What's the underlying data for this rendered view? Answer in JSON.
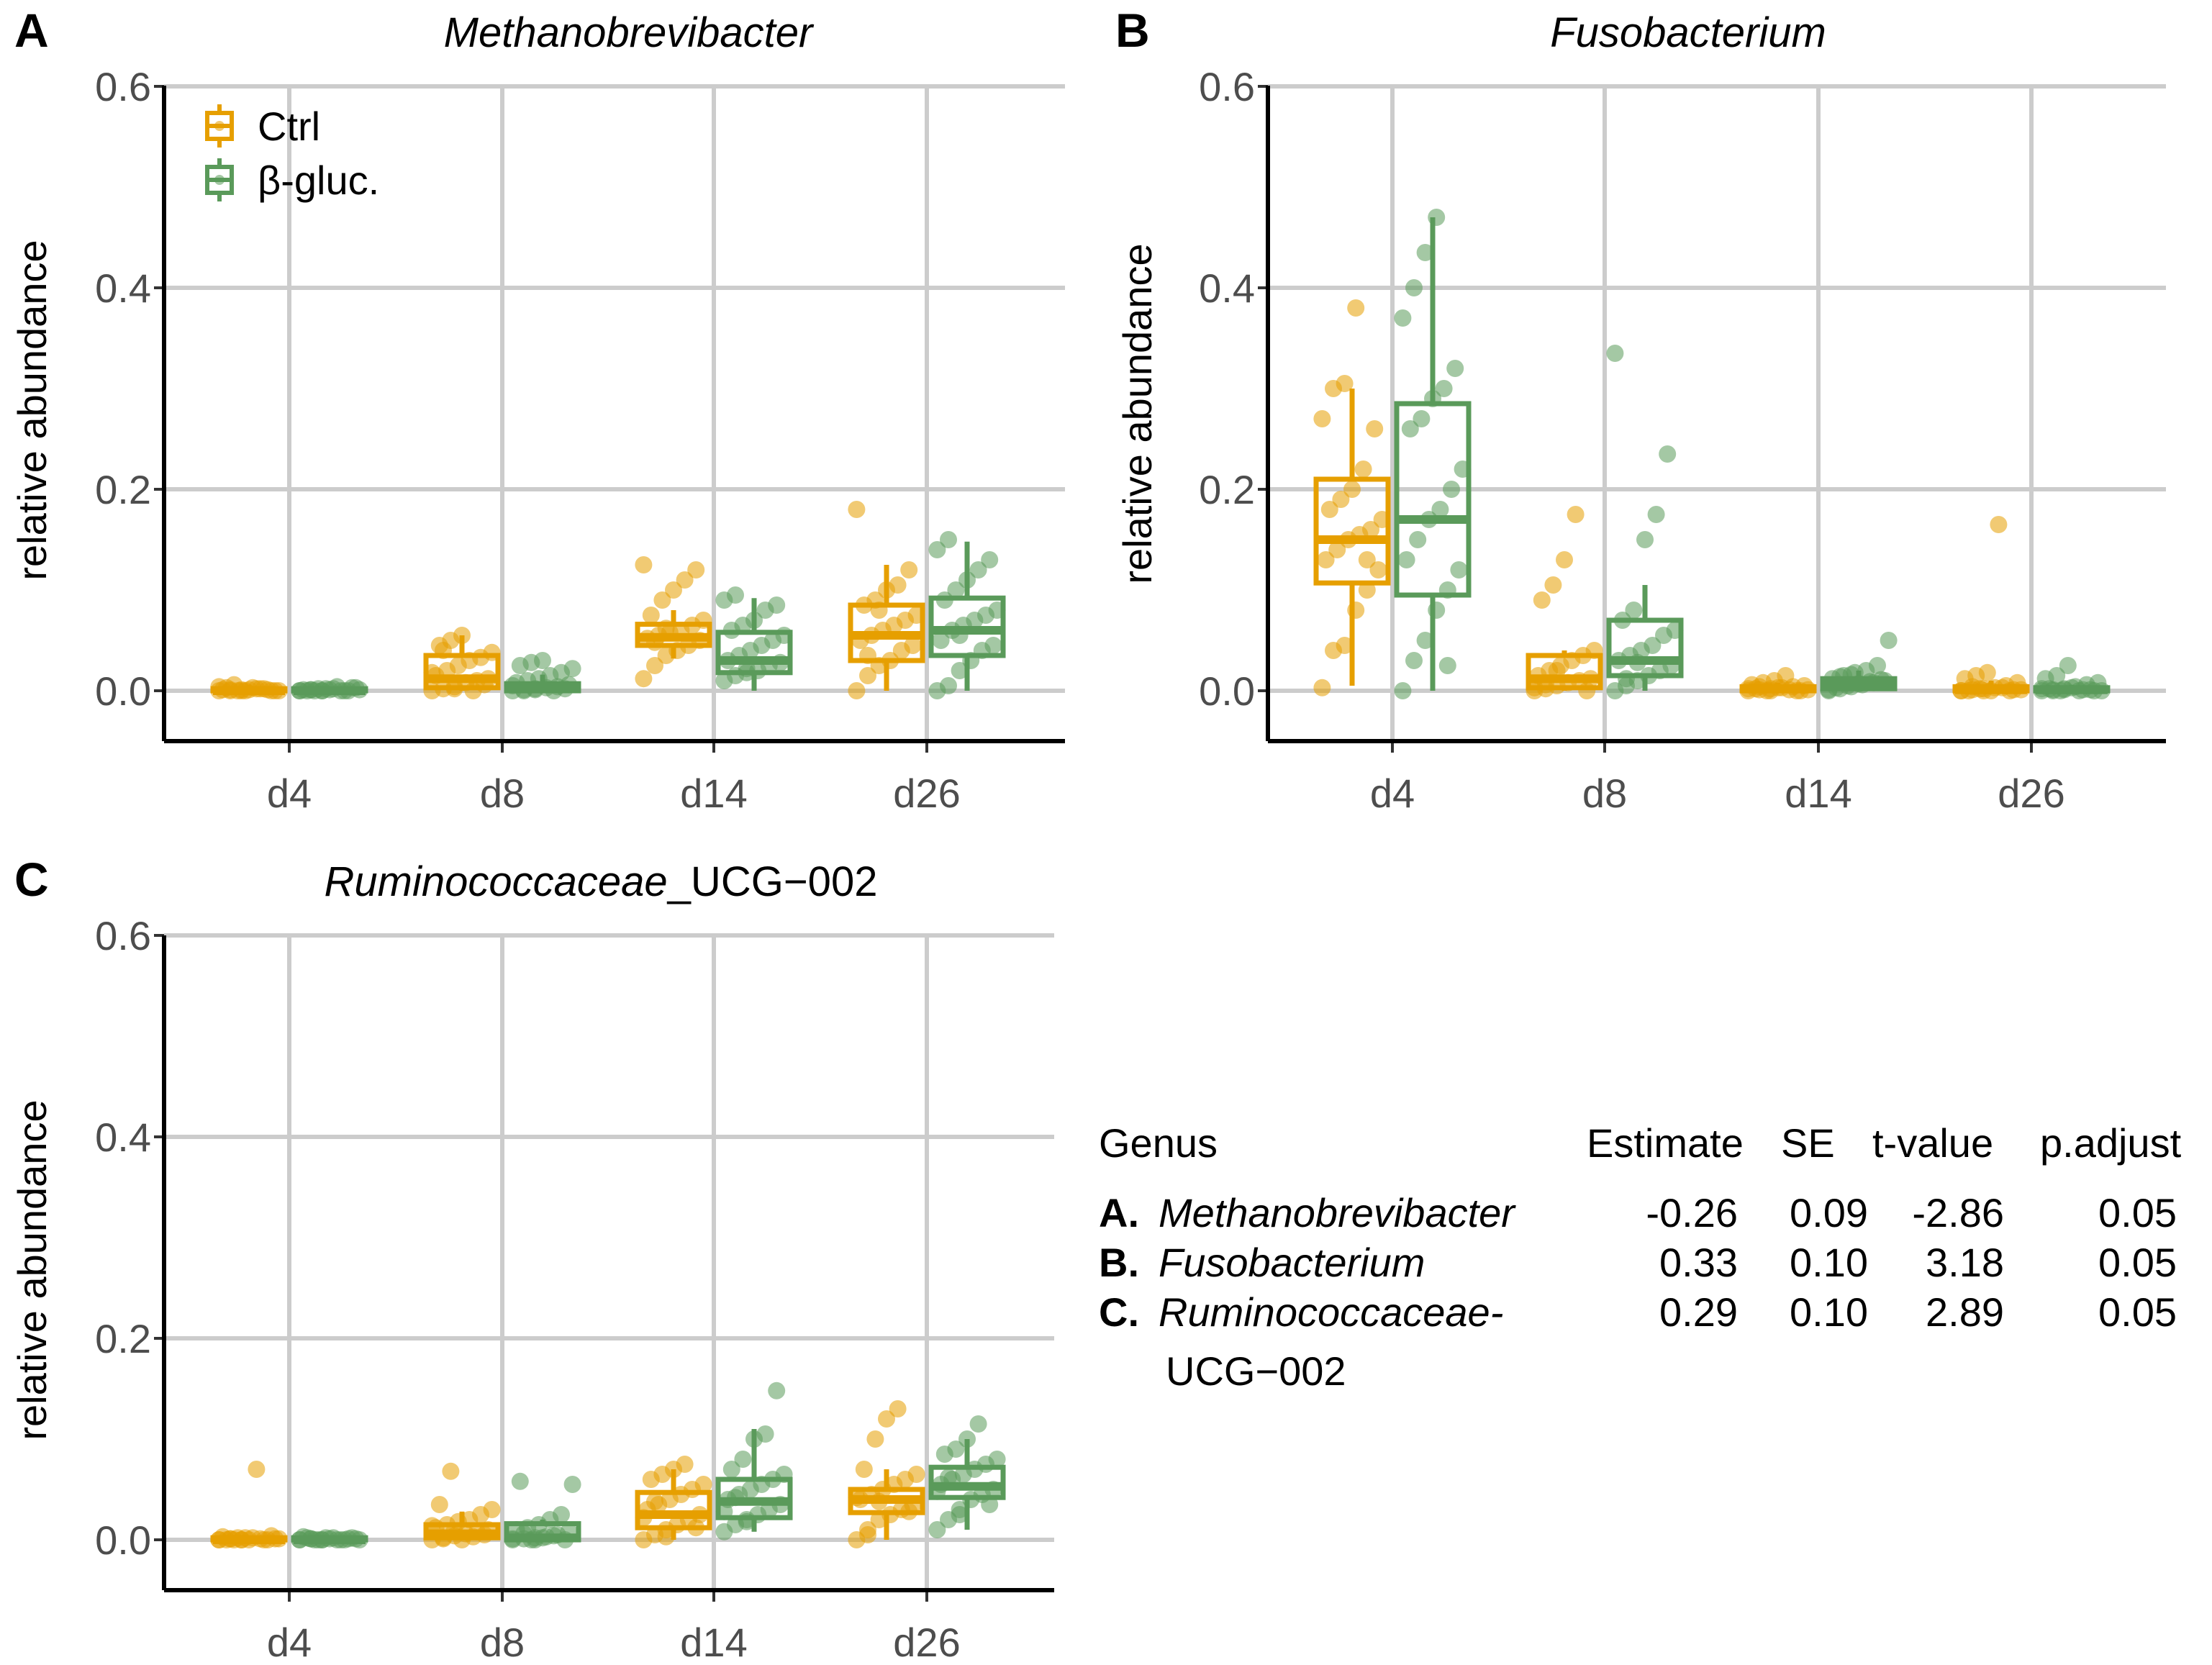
{
  "colors": {
    "ctrl": "#E69F00",
    "bgluc": "#5A9A5A",
    "grid": "#CCCCCC",
    "axis": "#000000"
  },
  "legend": {
    "items": [
      {
        "label": "Ctrl",
        "key": "ctrl"
      },
      {
        "label": "β-gluc.",
        "key": "bgluc"
      }
    ]
  },
  "chart_data": [
    {
      "type": "box",
      "panel": "A",
      "title": "Methanobrevibacter",
      "ylabel": "relative abundance",
      "xlabel": "",
      "ylim": [
        0,
        0.6
      ],
      "yticks": [
        "0.0",
        "0.2",
        "0.4",
        "0.6"
      ],
      "yticks_val": [
        0,
        0.2,
        0.4,
        0.6
      ],
      "categories": [
        "d4",
        "d8",
        "d14",
        "d26"
      ],
      "grid": true,
      "legend_position": "top-left",
      "series": [
        {
          "name": "Ctrl",
          "key": "ctrl",
          "boxes": [
            {
              "min": 0.0,
              "q1": 0.0,
              "median": 0.0,
              "q3": 0.002,
              "max": 0.006,
              "points": [
                0.0,
                0.001,
                0.0,
                0.003,
                0.002,
                0.0,
                0.001,
                0.006,
                0.0,
                0.002,
                0.001,
                0.0,
                0.003,
                0.0,
                0.001,
                0.002,
                0.0,
                0.004,
                0.0,
                0.001
              ]
            },
            {
              "min": 0.0,
              "q1": 0.003,
              "median": 0.012,
              "q3": 0.035,
              "max": 0.055,
              "points": [
                0.0,
                0.002,
                0.004,
                0.008,
                0.01,
                0.012,
                0.015,
                0.02,
                0.025,
                0.03,
                0.033,
                0.038,
                0.045,
                0.05,
                0.055,
                0.0,
                0.006,
                0.018,
                0.04,
                0.002
              ]
            },
            {
              "min": 0.032,
              "q1": 0.045,
              "median": 0.053,
              "q3": 0.066,
              "max": 0.08,
              "points": [
                0.012,
                0.025,
                0.035,
                0.04,
                0.045,
                0.05,
                0.052,
                0.055,
                0.058,
                0.06,
                0.065,
                0.07,
                0.075,
                0.09,
                0.1,
                0.11,
                0.12,
                0.125,
                0.048,
                0.062
              ]
            },
            {
              "min": 0.0,
              "q1": 0.03,
              "median": 0.055,
              "q3": 0.085,
              "max": 0.125,
              "points": [
                0.0,
                0.015,
                0.025,
                0.03,
                0.04,
                0.045,
                0.05,
                0.055,
                0.06,
                0.065,
                0.07,
                0.075,
                0.085,
                0.09,
                0.1,
                0.105,
                0.12,
                0.18,
                0.035,
                0.08
              ]
            }
          ]
        },
        {
          "name": "β-gluc.",
          "key": "bgluc",
          "boxes": [
            {
              "min": 0.0,
              "q1": 0.0,
              "median": 0.0,
              "q3": 0.002,
              "max": 0.004,
              "points": [
                0.0,
                0.001,
                0.0,
                0.002,
                0.0,
                0.003,
                0.001,
                0.0,
                0.002,
                0.004,
                0.0,
                0.001,
                0.0,
                0.002,
                0.001,
                0.0,
                0.003,
                0.0,
                0.001,
                0.0
              ]
            },
            {
              "min": 0.0,
              "q1": 0.0,
              "median": 0.002,
              "q3": 0.007,
              "max": 0.016,
              "points": [
                0.0,
                0.001,
                0.002,
                0.003,
                0.004,
                0.006,
                0.008,
                0.01,
                0.012,
                0.015,
                0.018,
                0.022,
                0.025,
                0.028,
                0.03,
                0.0,
                0.002,
                0.005,
                0.0,
                0.001
              ]
            },
            {
              "min": 0.0,
              "q1": 0.018,
              "median": 0.03,
              "q3": 0.058,
              "max": 0.092,
              "points": [
                0.01,
                0.015,
                0.018,
                0.02,
                0.025,
                0.028,
                0.03,
                0.035,
                0.04,
                0.045,
                0.05,
                0.055,
                0.06,
                0.065,
                0.07,
                0.08,
                0.085,
                0.09,
                0.095,
                0.022
              ]
            },
            {
              "min": 0.0,
              "q1": 0.035,
              "median": 0.06,
              "q3": 0.092,
              "max": 0.148,
              "points": [
                0.0,
                0.005,
                0.02,
                0.03,
                0.04,
                0.045,
                0.05,
                0.06,
                0.065,
                0.07,
                0.075,
                0.08,
                0.09,
                0.1,
                0.11,
                0.12,
                0.13,
                0.14,
                0.15,
                0.055
              ]
            }
          ]
        }
      ]
    },
    {
      "type": "box",
      "panel": "B",
      "title": "Fusobacterium",
      "ylabel": "relative abundance",
      "xlabel": "",
      "ylim": [
        0,
        0.6
      ],
      "yticks": [
        "0.0",
        "0.2",
        "0.4",
        "0.6"
      ],
      "yticks_val": [
        0,
        0.2,
        0.4,
        0.6
      ],
      "categories": [
        "d4",
        "d8",
        "d14",
        "d26"
      ],
      "grid": true,
      "series": [
        {
          "name": "Ctrl",
          "key": "ctrl",
          "boxes": [
            {
              "min": 0.005,
              "q1": 0.107,
              "median": 0.15,
              "q3": 0.21,
              "max": 0.3,
              "points": [
                0.003,
                0.04,
                0.045,
                0.08,
                0.1,
                0.12,
                0.13,
                0.14,
                0.15,
                0.155,
                0.16,
                0.17,
                0.18,
                0.19,
                0.2,
                0.22,
                0.26,
                0.27,
                0.3,
                0.305,
                0.38,
                0.13
              ]
            },
            {
              "min": 0.0,
              "q1": 0.003,
              "median": 0.012,
              "q3": 0.035,
              "max": 0.04,
              "points": [
                0.0,
                0.002,
                0.005,
                0.008,
                0.01,
                0.012,
                0.015,
                0.02,
                0.025,
                0.03,
                0.035,
                0.04,
                0.09,
                0.105,
                0.13,
                0.175,
                0.0,
                0.003,
                0.006,
                0.02
              ]
            },
            {
              "min": 0.0,
              "q1": 0.0,
              "median": 0.002,
              "q3": 0.004,
              "max": 0.008,
              "points": [
                0.0,
                0.001,
                0.002,
                0.003,
                0.004,
                0.005,
                0.006,
                0.008,
                0.01,
                0.015,
                0.0,
                0.001,
                0.002,
                0.0,
                0.003,
                0.001,
                0.0,
                0.002,
                0.004,
                0.0
              ]
            },
            {
              "min": 0.0,
              "q1": 0.0,
              "median": 0.001,
              "q3": 0.004,
              "max": 0.01,
              "points": [
                0.0,
                0.001,
                0.002,
                0.003,
                0.005,
                0.008,
                0.012,
                0.015,
                0.018,
                0.165,
                0.0,
                0.001,
                0.0,
                0.002,
                0.0,
                0.003,
                0.001,
                0.0,
                0.004,
                0.0
              ]
            }
          ]
        },
        {
          "name": "β-gluc.",
          "key": "bgluc",
          "boxes": [
            {
              "min": 0.0,
              "q1": 0.095,
              "median": 0.17,
              "q3": 0.285,
              "max": 0.47,
              "points": [
                0.0,
                0.03,
                0.05,
                0.08,
                0.1,
                0.12,
                0.13,
                0.15,
                0.17,
                0.18,
                0.2,
                0.22,
                0.26,
                0.27,
                0.29,
                0.3,
                0.32,
                0.37,
                0.4,
                0.435,
                0.47,
                0.025
              ]
            },
            {
              "min": 0.0,
              "q1": 0.015,
              "median": 0.03,
              "q3": 0.07,
              "max": 0.105,
              "points": [
                0.0,
                0.005,
                0.01,
                0.015,
                0.02,
                0.025,
                0.03,
                0.035,
                0.04,
                0.045,
                0.055,
                0.06,
                0.07,
                0.08,
                0.15,
                0.175,
                0.235,
                0.335,
                0.012,
                0.028
              ]
            },
            {
              "min": 0.0,
              "q1": 0.002,
              "median": 0.006,
              "q3": 0.012,
              "max": 0.02,
              "points": [
                0.0,
                0.002,
                0.004,
                0.006,
                0.008,
                0.01,
                0.012,
                0.015,
                0.018,
                0.02,
                0.025,
                0.05,
                0.003,
                0.005,
                0.007,
                0.009,
                0.011,
                0.001,
                0.014,
                0.016
              ]
            },
            {
              "min": 0.0,
              "q1": 0.0,
              "median": 0.001,
              "q3": 0.003,
              "max": 0.006,
              "points": [
                0.0,
                0.001,
                0.002,
                0.004,
                0.006,
                0.008,
                0.012,
                0.015,
                0.025,
                0.0,
                0.001,
                0.0,
                0.002,
                0.0,
                0.003,
                0.001,
                0.0,
                0.002,
                0.0,
                0.001
              ]
            }
          ]
        }
      ]
    },
    {
      "type": "box",
      "panel": "C",
      "title": "Ruminococcaceae",
      "title_suffix": "_UCG−002",
      "ylabel": "relative abundance",
      "xlabel": "",
      "ylim": [
        0,
        0.6
      ],
      "yticks": [
        "0.0",
        "0.2",
        "0.4",
        "0.6"
      ],
      "yticks_val": [
        0,
        0.2,
        0.4,
        0.6
      ],
      "categories": [
        "d4",
        "d8",
        "d14",
        "d26"
      ],
      "grid": true,
      "series": [
        {
          "name": "Ctrl",
          "key": "ctrl",
          "boxes": [
            {
              "min": 0.0,
              "q1": 0.0,
              "median": 0.0,
              "q3": 0.002,
              "max": 0.004,
              "points": [
                0.0,
                0.001,
                0.0,
                0.002,
                0.0,
                0.001,
                0.003,
                0.0,
                0.002,
                0.07,
                0.0,
                0.001,
                0.0,
                0.002,
                0.0,
                0.001,
                0.004,
                0.0,
                0.001,
                0.0
              ]
            },
            {
              "min": 0.0,
              "q1": 0.002,
              "median": 0.006,
              "q3": 0.015,
              "max": 0.028,
              "points": [
                0.0,
                0.002,
                0.004,
                0.006,
                0.008,
                0.01,
                0.012,
                0.015,
                0.018,
                0.02,
                0.025,
                0.03,
                0.035,
                0.068,
                0.0,
                0.003,
                0.005,
                0.014,
                0.001,
                0.009
              ]
            },
            {
              "min": 0.0,
              "q1": 0.012,
              "median": 0.025,
              "q3": 0.047,
              "max": 0.07,
              "points": [
                0.0,
                0.005,
                0.01,
                0.015,
                0.02,
                0.025,
                0.03,
                0.035,
                0.04,
                0.045,
                0.05,
                0.055,
                0.06,
                0.065,
                0.07,
                0.075,
                0.012,
                0.022,
                0.038,
                0.003
              ]
            },
            {
              "min": 0.0,
              "q1": 0.027,
              "median": 0.04,
              "q3": 0.05,
              "max": 0.07,
              "points": [
                0.0,
                0.01,
                0.02,
                0.025,
                0.03,
                0.035,
                0.04,
                0.045,
                0.05,
                0.055,
                0.06,
                0.065,
                0.07,
                0.1,
                0.12,
                0.13,
                0.028,
                0.042,
                0.005,
                0.038
              ]
            }
          ]
        },
        {
          "name": "β-gluc.",
          "key": "bgluc",
          "boxes": [
            {
              "min": 0.0,
              "q1": 0.0,
              "median": 0.0,
              "q3": 0.002,
              "max": 0.003,
              "points": [
                0.0,
                0.001,
                0.0,
                0.002,
                0.0,
                0.001,
                0.003,
                0.0,
                0.002,
                0.0,
                0.001,
                0.0,
                0.002,
                0.0,
                0.001,
                0.0,
                0.002,
                0.0,
                0.001,
                0.0
              ]
            },
            {
              "min": 0.0,
              "q1": 0.0,
              "median": 0.002,
              "q3": 0.016,
              "max": 0.02,
              "points": [
                0.0,
                0.001,
                0.002,
                0.003,
                0.005,
                0.008,
                0.01,
                0.012,
                0.015,
                0.02,
                0.025,
                0.055,
                0.058,
                0.0,
                0.002,
                0.004,
                0.0,
                0.001,
                0.006,
                0.0
              ]
            },
            {
              "min": 0.008,
              "q1": 0.022,
              "median": 0.038,
              "q3": 0.06,
              "max": 0.11,
              "points": [
                0.008,
                0.015,
                0.02,
                0.025,
                0.03,
                0.035,
                0.04,
                0.045,
                0.05,
                0.055,
                0.06,
                0.065,
                0.07,
                0.08,
                0.1,
                0.105,
                0.148,
                0.028,
                0.042,
                0.018
              ]
            },
            {
              "min": 0.01,
              "q1": 0.042,
              "median": 0.053,
              "q3": 0.072,
              "max": 0.1,
              "points": [
                0.01,
                0.02,
                0.03,
                0.04,
                0.045,
                0.05,
                0.055,
                0.06,
                0.065,
                0.07,
                0.075,
                0.08,
                0.085,
                0.09,
                0.1,
                0.115,
                0.035,
                0.048,
                0.062,
                0.025
              ]
            }
          ]
        }
      ]
    }
  ],
  "table": {
    "headers": [
      "Genus",
      "Estimate",
      "SE",
      "t-value",
      "p.adjust"
    ],
    "rows": [
      {
        "letter": "A.",
        "genus": "Methanobrevibacter",
        "genus_line2": "",
        "estimate": "-0.26",
        "se": "0.09",
        "t": "-2.86",
        "p": "0.05"
      },
      {
        "letter": "B.",
        "genus": "Fusobacterium",
        "genus_line2": "",
        "estimate": "0.33",
        "se": "0.10",
        "t": "3.18",
        "p": "0.05"
      },
      {
        "letter": "C.",
        "genus": "Ruminococcaceae-",
        "genus_line2": "UCG−002",
        "estimate": "0.29",
        "se": "0.10",
        "t": "2.89",
        "p": "0.05"
      }
    ]
  }
}
